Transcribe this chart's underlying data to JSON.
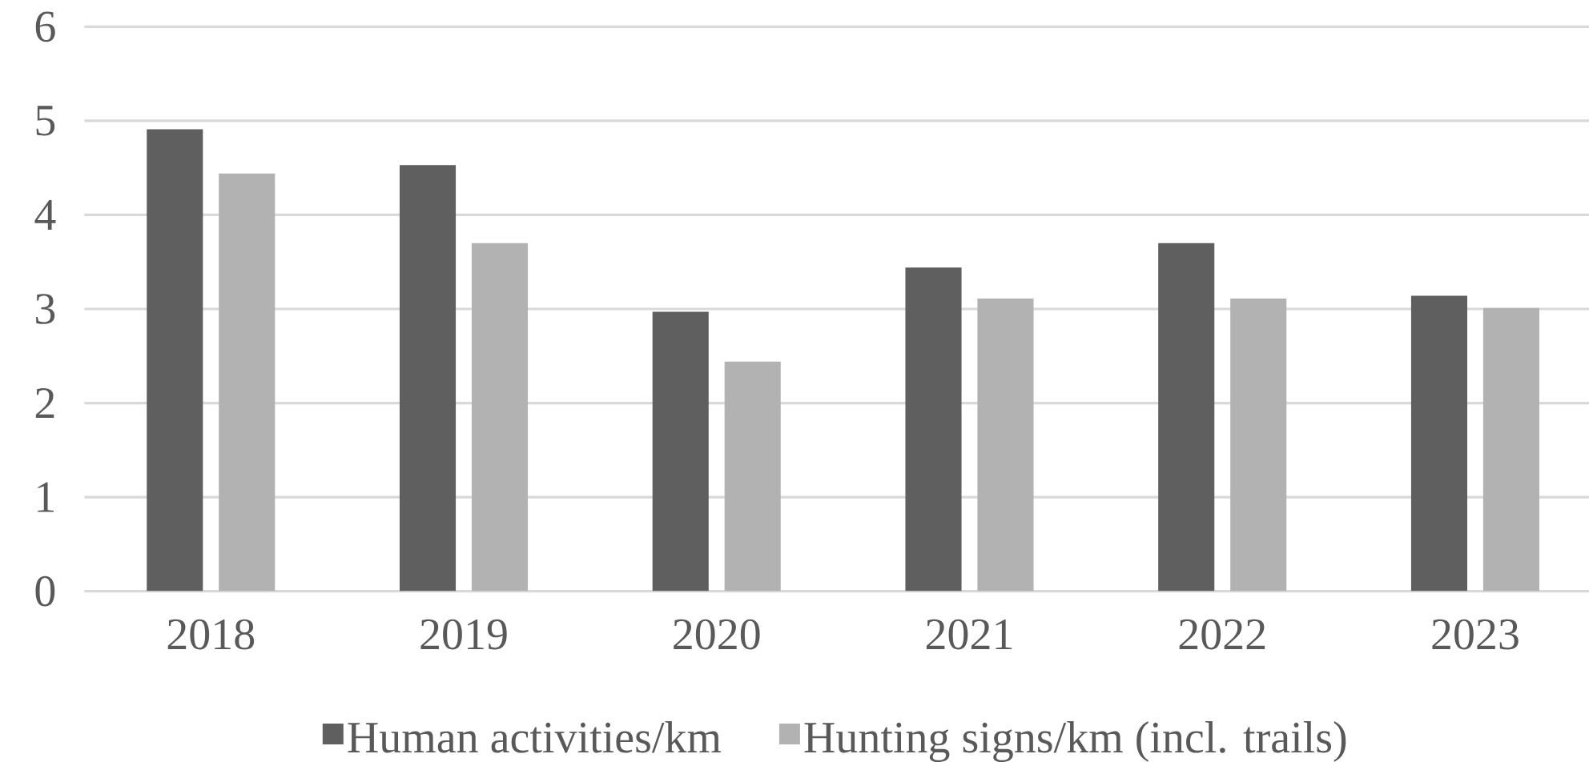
{
  "chart_data": {
    "type": "bar",
    "categories": [
      "2018",
      "2019",
      "2020",
      "2021",
      "2022",
      "2023"
    ],
    "series": [
      {
        "name": "Human activities/km",
        "color": "#5f5f5f",
        "values": [
          4.91,
          4.53,
          2.97,
          3.44,
          3.7,
          3.14
        ]
      },
      {
        "name": "Hunting signs/km (incl. trails)",
        "color": "#b2b2b2",
        "values": [
          4.44,
          3.7,
          2.44,
          3.11,
          3.11,
          3.01
        ]
      }
    ],
    "ylim": [
      0,
      6
    ],
    "yticks": [
      0,
      1,
      2,
      3,
      4,
      5,
      6
    ],
    "grid": "y",
    "legend": "bottom"
  }
}
